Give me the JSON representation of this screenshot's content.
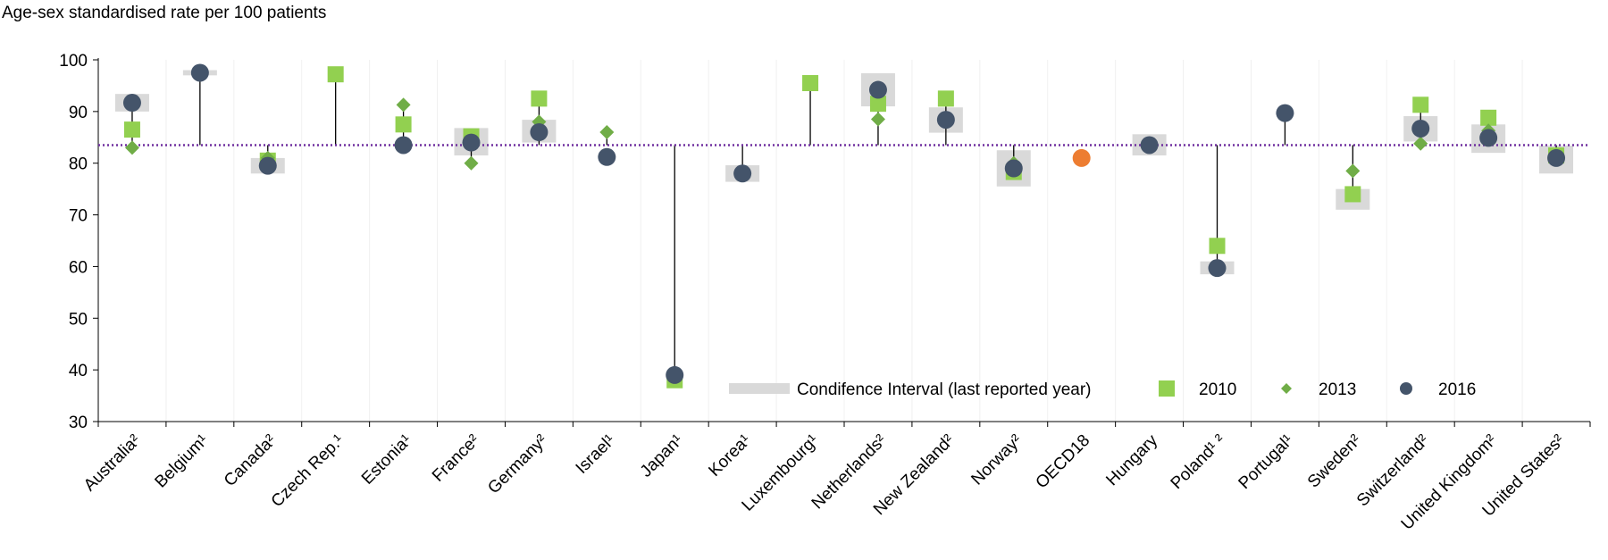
{
  "chart_data": {
    "type": "dot-plot",
    "ylabel": "Age-sex standardised rate per 100 patients",
    "ylim": [
      30,
      100
    ],
    "yticks": [
      30,
      40,
      50,
      60,
      70,
      80,
      90,
      100
    ],
    "reference_line": 83.5,
    "categories": [
      "Australia²",
      "Belgium¹",
      "Canada²",
      "Czech Rep.¹",
      "Estonia¹",
      "France²",
      "Germany²",
      "Israel¹",
      "Japan¹",
      "Korea¹",
      "Luxembourg¹",
      "Netherlands²",
      "New Zealand²",
      "Norway²",
      "OECD18",
      "Hungary",
      "Poland¹ ²",
      "Portugal¹",
      "Sweden²",
      "Switzerland²",
      "United Kingdom²",
      "United States²"
    ],
    "series": [
      {
        "name": "2010",
        "marker": "square",
        "color": "#92D050",
        "values": [
          86.5,
          null,
          80.5,
          97.2,
          87.5,
          85.2,
          92.5,
          null,
          38.0,
          null,
          95.5,
          91.5,
          92.5,
          78.3,
          null,
          null,
          64.0,
          null,
          74.0,
          91.3,
          88.8,
          81.5
        ]
      },
      {
        "name": "2013",
        "marker": "diamond",
        "color": "#70AD47",
        "values": [
          83.0,
          null,
          81.0,
          null,
          91.3,
          80.0,
          88.0,
          86.0,
          null,
          null,
          null,
          88.5,
          null,
          80.0,
          null,
          null,
          null,
          null,
          78.5,
          83.8,
          86.3,
          81.2
        ]
      },
      {
        "name": "2016",
        "marker": "circle",
        "color": "#44546A",
        "values": [
          91.7,
          97.5,
          79.5,
          null,
          83.5,
          84.0,
          86.0,
          81.2,
          39.0,
          78.0,
          null,
          94.2,
          88.4,
          79.0,
          null,
          83.5,
          59.7,
          89.7,
          null,
          86.7,
          84.9,
          81.0
        ]
      }
    ],
    "oecd_average": {
      "category": "OECD18",
      "value": 81.0,
      "color": "#ED7D31"
    },
    "confidence_interval": {
      "name": "Condifence Interval (last reported year)",
      "color": "#D9D9D9",
      "ranges": [
        [
          90.0,
          93.4
        ],
        [
          97.0,
          98.0
        ],
        [
          78.0,
          81.0
        ],
        null,
        null,
        [
          81.5,
          86.8
        ],
        [
          84.0,
          88.4
        ],
        null,
        null,
        [
          76.4,
          79.6
        ],
        null,
        [
          91.0,
          97.4
        ],
        [
          85.9,
          90.8
        ],
        [
          75.5,
          82.5
        ],
        null,
        [
          81.5,
          85.6
        ],
        [
          58.5,
          61.0
        ],
        null,
        [
          71.0,
          75.0
        ],
        [
          84.2,
          89.1
        ],
        [
          82.0,
          87.5
        ],
        [
          78.0,
          83.4
        ]
      ]
    },
    "legend_position": "bottom-right",
    "grid": false
  }
}
